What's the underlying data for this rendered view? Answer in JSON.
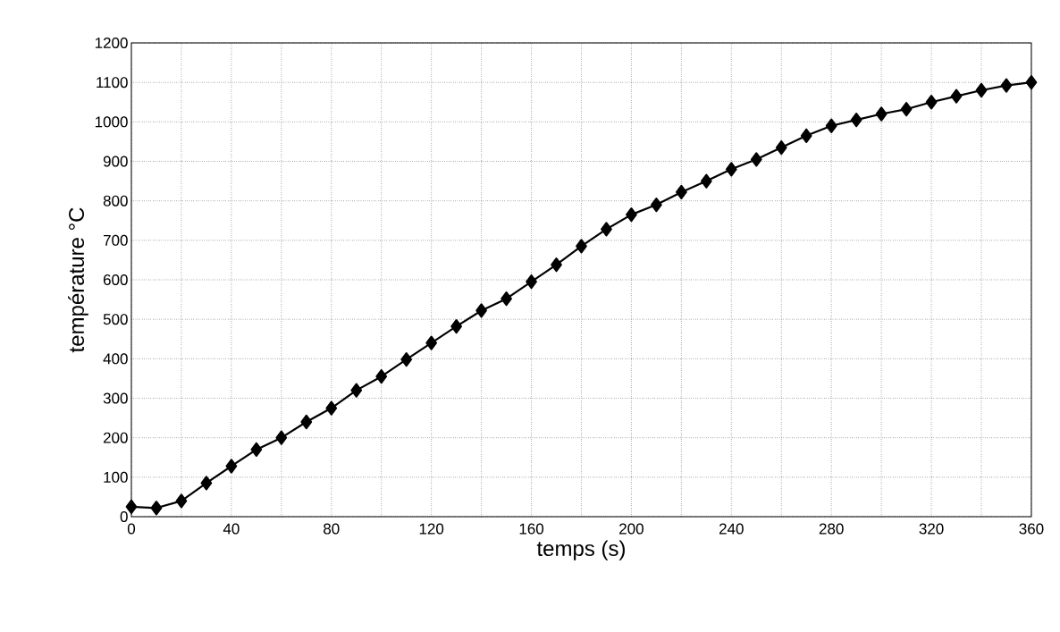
{
  "chart_data": {
    "type": "line",
    "xlabel": "temps (s)",
    "ylabel": "température °C",
    "x": [
      0,
      10,
      20,
      30,
      40,
      50,
      60,
      70,
      80,
      90,
      100,
      110,
      120,
      130,
      140,
      150,
      160,
      170,
      180,
      190,
      200,
      210,
      220,
      230,
      240,
      250,
      260,
      270,
      280,
      290,
      300,
      310,
      320,
      330,
      340,
      350,
      360
    ],
    "series": [
      {
        "color": "#000000",
        "values": [
          25,
          22,
          40,
          85,
          128,
          170,
          200,
          240,
          275,
          320,
          355,
          398,
          440,
          482,
          522,
          552,
          595,
          638,
          685,
          728,
          765,
          790,
          822,
          850,
          880,
          905,
          935,
          965,
          990,
          1005,
          1020,
          1032,
          1050,
          1065,
          1080,
          1092,
          1100
        ]
      }
    ],
    "xlim": [
      0,
      360
    ],
    "xticks": [
      0,
      40,
      80,
      120,
      160,
      200,
      240,
      280,
      320,
      360
    ],
    "ylim": [
      0,
      1200
    ],
    "yticks": [
      0,
      100,
      200,
      300,
      400,
      500,
      600,
      700,
      800,
      900,
      1000,
      1100,
      1200
    ],
    "grid": true,
    "marker": "diamond",
    "line_style": "solid"
  }
}
